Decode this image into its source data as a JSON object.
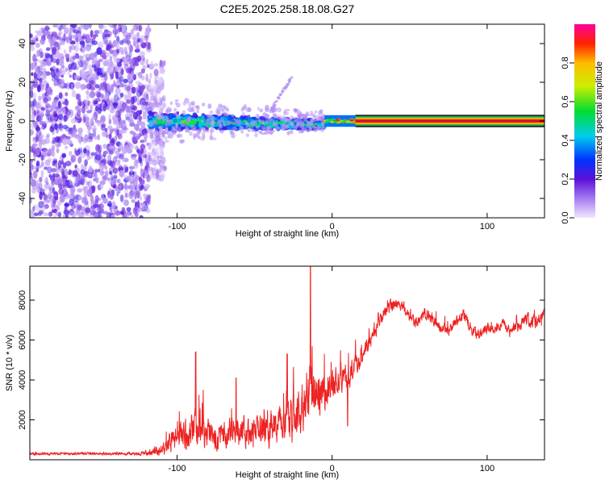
{
  "title": "C2E5.2025.258.18.08.G27",
  "colors": {
    "snr_line": "#ee2222",
    "signal_red": "#dd1133",
    "signal_green": "#22cc55",
    "noise_purple": "#5a10d8"
  },
  "chart_data": [
    {
      "type": "heatmap",
      "name": "spectrogram",
      "xlabel": "Height of straight line (km)",
      "ylabel": "Frequency (Hz)",
      "xlim": [
        -195,
        137
      ],
      "ylim": [
        -50,
        50
      ],
      "xticks": [
        {
          "v": -100,
          "label": "-100"
        },
        {
          "v": 0,
          "label": "0"
        },
        {
          "v": 100,
          "label": "100"
        }
      ],
      "yticks": [
        {
          "v": -40,
          "label": "-40"
        },
        {
          "v": -20,
          "label": "-20"
        },
        {
          "v": 0,
          "label": "0"
        },
        {
          "v": 20,
          "label": "20"
        },
        {
          "v": 40,
          "label": "40"
        }
      ],
      "colorbar": {
        "label": "Normalized spectral amplitude",
        "range": [
          0,
          1
        ],
        "ticks": [
          {
            "v": 0.0,
            "label": "0.0"
          },
          {
            "v": 0.2,
            "label": "0.2"
          },
          {
            "v": 0.4,
            "label": "0.4"
          },
          {
            "v": 0.6,
            "label": "0.6"
          },
          {
            "v": 0.8,
            "label": "0.8"
          }
        ]
      },
      "regions": [
        {
          "kind": "noise",
          "x": [
            -195,
            -118
          ],
          "freq": [
            -50,
            50
          ],
          "amplitude": [
            0.05,
            0.25
          ]
        },
        {
          "kind": "fading_noise",
          "x": [
            -118,
            -108
          ],
          "freq": [
            -30,
            30
          ],
          "amplitude": [
            0.02,
            0.12
          ]
        },
        {
          "kind": "broad_signal",
          "x": [
            -118,
            -5
          ],
          "freq_center": [
            0,
            -2
          ],
          "freq_halfwidth": [
            6,
            3
          ],
          "amplitude": [
            0.15,
            0.6
          ]
        },
        {
          "kind": "narrow_signal",
          "x": [
            -5,
            15
          ],
          "freq_center": 0,
          "freq_halfwidth": 1.5,
          "amplitude": [
            0.4,
            0.95
          ]
        },
        {
          "kind": "carrier",
          "x": [
            15,
            137
          ],
          "freq_center": 0,
          "freq_halfwidth": 0.8,
          "amplitude": 1.0
        }
      ]
    },
    {
      "type": "line",
      "name": "snr",
      "xlabel": "Height of straight line (km)",
      "ylabel": "SNR (10 * v/v)",
      "xlim": [
        -195,
        137
      ],
      "ylim": [
        0,
        9700
      ],
      "xticks": [
        {
          "v": -100,
          "label": "-100"
        },
        {
          "v": 0,
          "label": "0"
        },
        {
          "v": 100,
          "label": "100"
        }
      ],
      "yticks": [
        {
          "v": 2000,
          "label": "2000"
        },
        {
          "v": 4000,
          "label": "4000"
        },
        {
          "v": 6000,
          "label": "6000"
        },
        {
          "v": 8000,
          "label": "8000"
        }
      ],
      "series": [
        {
          "name": "SNR",
          "x": [
            -195,
            -150,
            -125,
            -112,
            -105,
            -95,
            -88,
            -80,
            -70,
            -60,
            -50,
            -40,
            -30,
            -20,
            -15,
            -10,
            -5,
            0,
            5,
            10,
            15,
            20,
            25,
            30,
            35,
            40,
            45,
            50,
            55,
            60,
            65,
            70,
            75,
            80,
            85,
            90,
            95,
            100,
            105,
            110,
            115,
            120,
            125,
            130,
            137
          ],
          "y": [
            300,
            300,
            300,
            400,
            800,
            1300,
            1600,
            1400,
            1200,
            1500,
            1300,
            1700,
            1900,
            2400,
            3500,
            3100,
            3400,
            3900,
            4200,
            3800,
            4800,
            5400,
            6000,
            6800,
            7500,
            7800,
            7700,
            7100,
            6800,
            7400,
            7000,
            6600,
            6400,
            6900,
            7300,
            6500,
            6300,
            6600,
            6500,
            6900,
            6400,
            6700,
            7100,
            6800,
            7300
          ],
          "noise": [
            80,
            80,
            100,
            300,
            700,
            1100,
            1300,
            1100,
            900,
            1100,
            1000,
            1300,
            1500,
            1700,
            2000,
            1600,
            1200,
            1100,
            1000,
            900,
            800,
            700,
            600,
            500,
            500,
            400,
            400,
            400,
            400,
            400,
            400,
            400,
            400,
            400,
            400,
            400,
            400,
            400,
            400,
            400,
            400,
            500,
            500,
            500,
            500
          ],
          "spikes": [
            {
              "x": -88,
              "y": 5400
            },
            {
              "x": -14,
              "y": 9700
            },
            {
              "x": 10,
              "y": 1700
            },
            {
              "x": -62,
              "y": 4100
            },
            {
              "x": -29,
              "y": 5300
            }
          ]
        }
      ]
    }
  ]
}
